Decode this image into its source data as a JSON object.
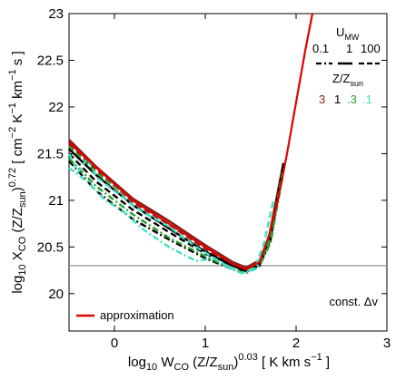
{
  "chart_data": {
    "type": "line",
    "xlabel": "log10 WCO (Z/Zsun)^0.03 [ K km s^-1 ]",
    "ylabel": "log10 XCO (Z/Zsun)^0.72 [ cm^-2 K^-1 km^-1 s ]",
    "xlim": [
      -0.5,
      3
    ],
    "ylim": [
      19.6,
      23
    ],
    "x_ticks": [
      "0",
      "1",
      "2",
      "3"
    ],
    "y_ticks": [
      "20",
      "20.5",
      "21",
      "21.5",
      "22",
      "22.5",
      "23"
    ],
    "grid": false,
    "reference_line": {
      "y": 20.3,
      "color": "#888888"
    },
    "annotation": "const. Δv",
    "legend_umw": {
      "title": "U",
      "title_sub": "MW",
      "labels": [
        "0.1",
        "1",
        "100"
      ],
      "styles": [
        "dash-dot",
        "solid",
        "dashed"
      ]
    },
    "legend_z": {
      "title": "Z/Z",
      "title_sub": "sun",
      "labels": [
        "3",
        "1",
        ".3",
        ".1"
      ],
      "colors": [
        "#8b1a1a",
        "#000000",
        "#2e9e2e",
        "#40e0c0"
      ]
    },
    "legend_approx": {
      "label": "approximation",
      "color": "#e00000"
    },
    "series": [
      {
        "name": "approximation",
        "color": "#e00000",
        "style": "solid",
        "x": [
          -0.5,
          -0.2,
          0.2,
          0.6,
          1.0,
          1.3,
          1.45,
          1.6,
          1.7,
          1.8,
          1.9,
          2.0,
          2.1,
          2.18
        ],
        "y": [
          21.62,
          21.35,
          21.0,
          20.75,
          20.5,
          20.32,
          20.26,
          20.34,
          20.62,
          21.0,
          21.5,
          22.05,
          22.6,
          23.0
        ]
      },
      {
        "color": "#8b1a1a",
        "style": "solid",
        "x": [
          -0.5,
          -0.2,
          0.2,
          0.6,
          1.0,
          1.3,
          1.45,
          1.6,
          1.7,
          1.85
        ],
        "y": [
          21.65,
          21.36,
          21.02,
          20.78,
          20.52,
          20.34,
          20.28,
          20.36,
          20.6,
          21.35
        ]
      },
      {
        "color": "#8b1a1a",
        "style": "dashed",
        "x": [
          -0.5,
          -0.2,
          0.2,
          0.6,
          1.0,
          1.3,
          1.45,
          1.6,
          1.72,
          1.85
        ],
        "y": [
          21.6,
          21.33,
          20.98,
          20.74,
          20.48,
          20.3,
          20.25,
          20.33,
          20.58,
          21.3
        ]
      },
      {
        "color": "#000000",
        "style": "solid",
        "x": [
          -0.5,
          -0.2,
          0.2,
          0.6,
          1.0,
          1.3,
          1.45,
          1.6,
          1.72,
          1.86
        ],
        "y": [
          21.55,
          21.27,
          20.95,
          20.7,
          20.45,
          20.3,
          20.24,
          20.32,
          20.6,
          21.4
        ]
      },
      {
        "color": "#000000",
        "style": "dash-dot",
        "x": [
          -0.5,
          -0.2,
          0.2,
          0.6,
          1.0,
          1.3,
          1.45,
          1.6,
          1.72,
          1.86
        ],
        "y": [
          21.42,
          21.1,
          20.8,
          20.58,
          20.38,
          20.26,
          20.23,
          20.3,
          20.58,
          21.35
        ]
      },
      {
        "color": "#000000",
        "style": "dashed",
        "x": [
          -0.5,
          -0.2,
          0.2,
          0.6,
          1.0,
          1.3,
          1.45,
          1.6,
          1.72,
          1.86
        ],
        "y": [
          21.5,
          21.2,
          20.9,
          20.66,
          20.43,
          20.3,
          20.25,
          20.32,
          20.6,
          21.38
        ]
      },
      {
        "color": "#2e9e2e",
        "style": "dashed",
        "x": [
          -0.5,
          -0.2,
          0.2,
          0.6,
          1.0,
          1.3,
          1.45,
          1.6,
          1.72,
          1.85
        ],
        "y": [
          21.58,
          21.3,
          21.0,
          20.75,
          20.5,
          20.32,
          20.26,
          20.34,
          20.6,
          21.3
        ]
      },
      {
        "color": "#2e9e2e",
        "style": "dash-dot",
        "x": [
          -0.5,
          -0.2,
          0.2,
          0.6,
          1.0,
          1.3,
          1.45,
          1.6,
          1.72,
          1.85
        ],
        "y": [
          21.45,
          21.15,
          20.85,
          20.6,
          20.4,
          20.26,
          20.22,
          20.3,
          20.55,
          21.25
        ]
      },
      {
        "color": "#40e0c0",
        "style": "dashed",
        "x": [
          -0.5,
          -0.4,
          -0.3,
          -0.2,
          0.0,
          0.3,
          0.6,
          0.9,
          1.2,
          1.4,
          1.55,
          1.65,
          1.75
        ],
        "y": [
          21.5,
          21.3,
          21.45,
          21.25,
          21.1,
          20.88,
          20.72,
          20.5,
          20.32,
          20.22,
          20.28,
          20.55,
          21.0
        ]
      },
      {
        "color": "#40e0c0",
        "style": "dash-dot",
        "x": [
          -0.5,
          -0.3,
          -0.1,
          0.1,
          0.3,
          0.6,
          0.9,
          1.1,
          1.25,
          1.4,
          1.55,
          1.7
        ],
        "y": [
          21.35,
          21.2,
          21.0,
          20.88,
          20.7,
          20.5,
          20.35,
          20.38,
          20.28,
          20.22,
          20.26,
          20.6
        ]
      }
    ]
  }
}
